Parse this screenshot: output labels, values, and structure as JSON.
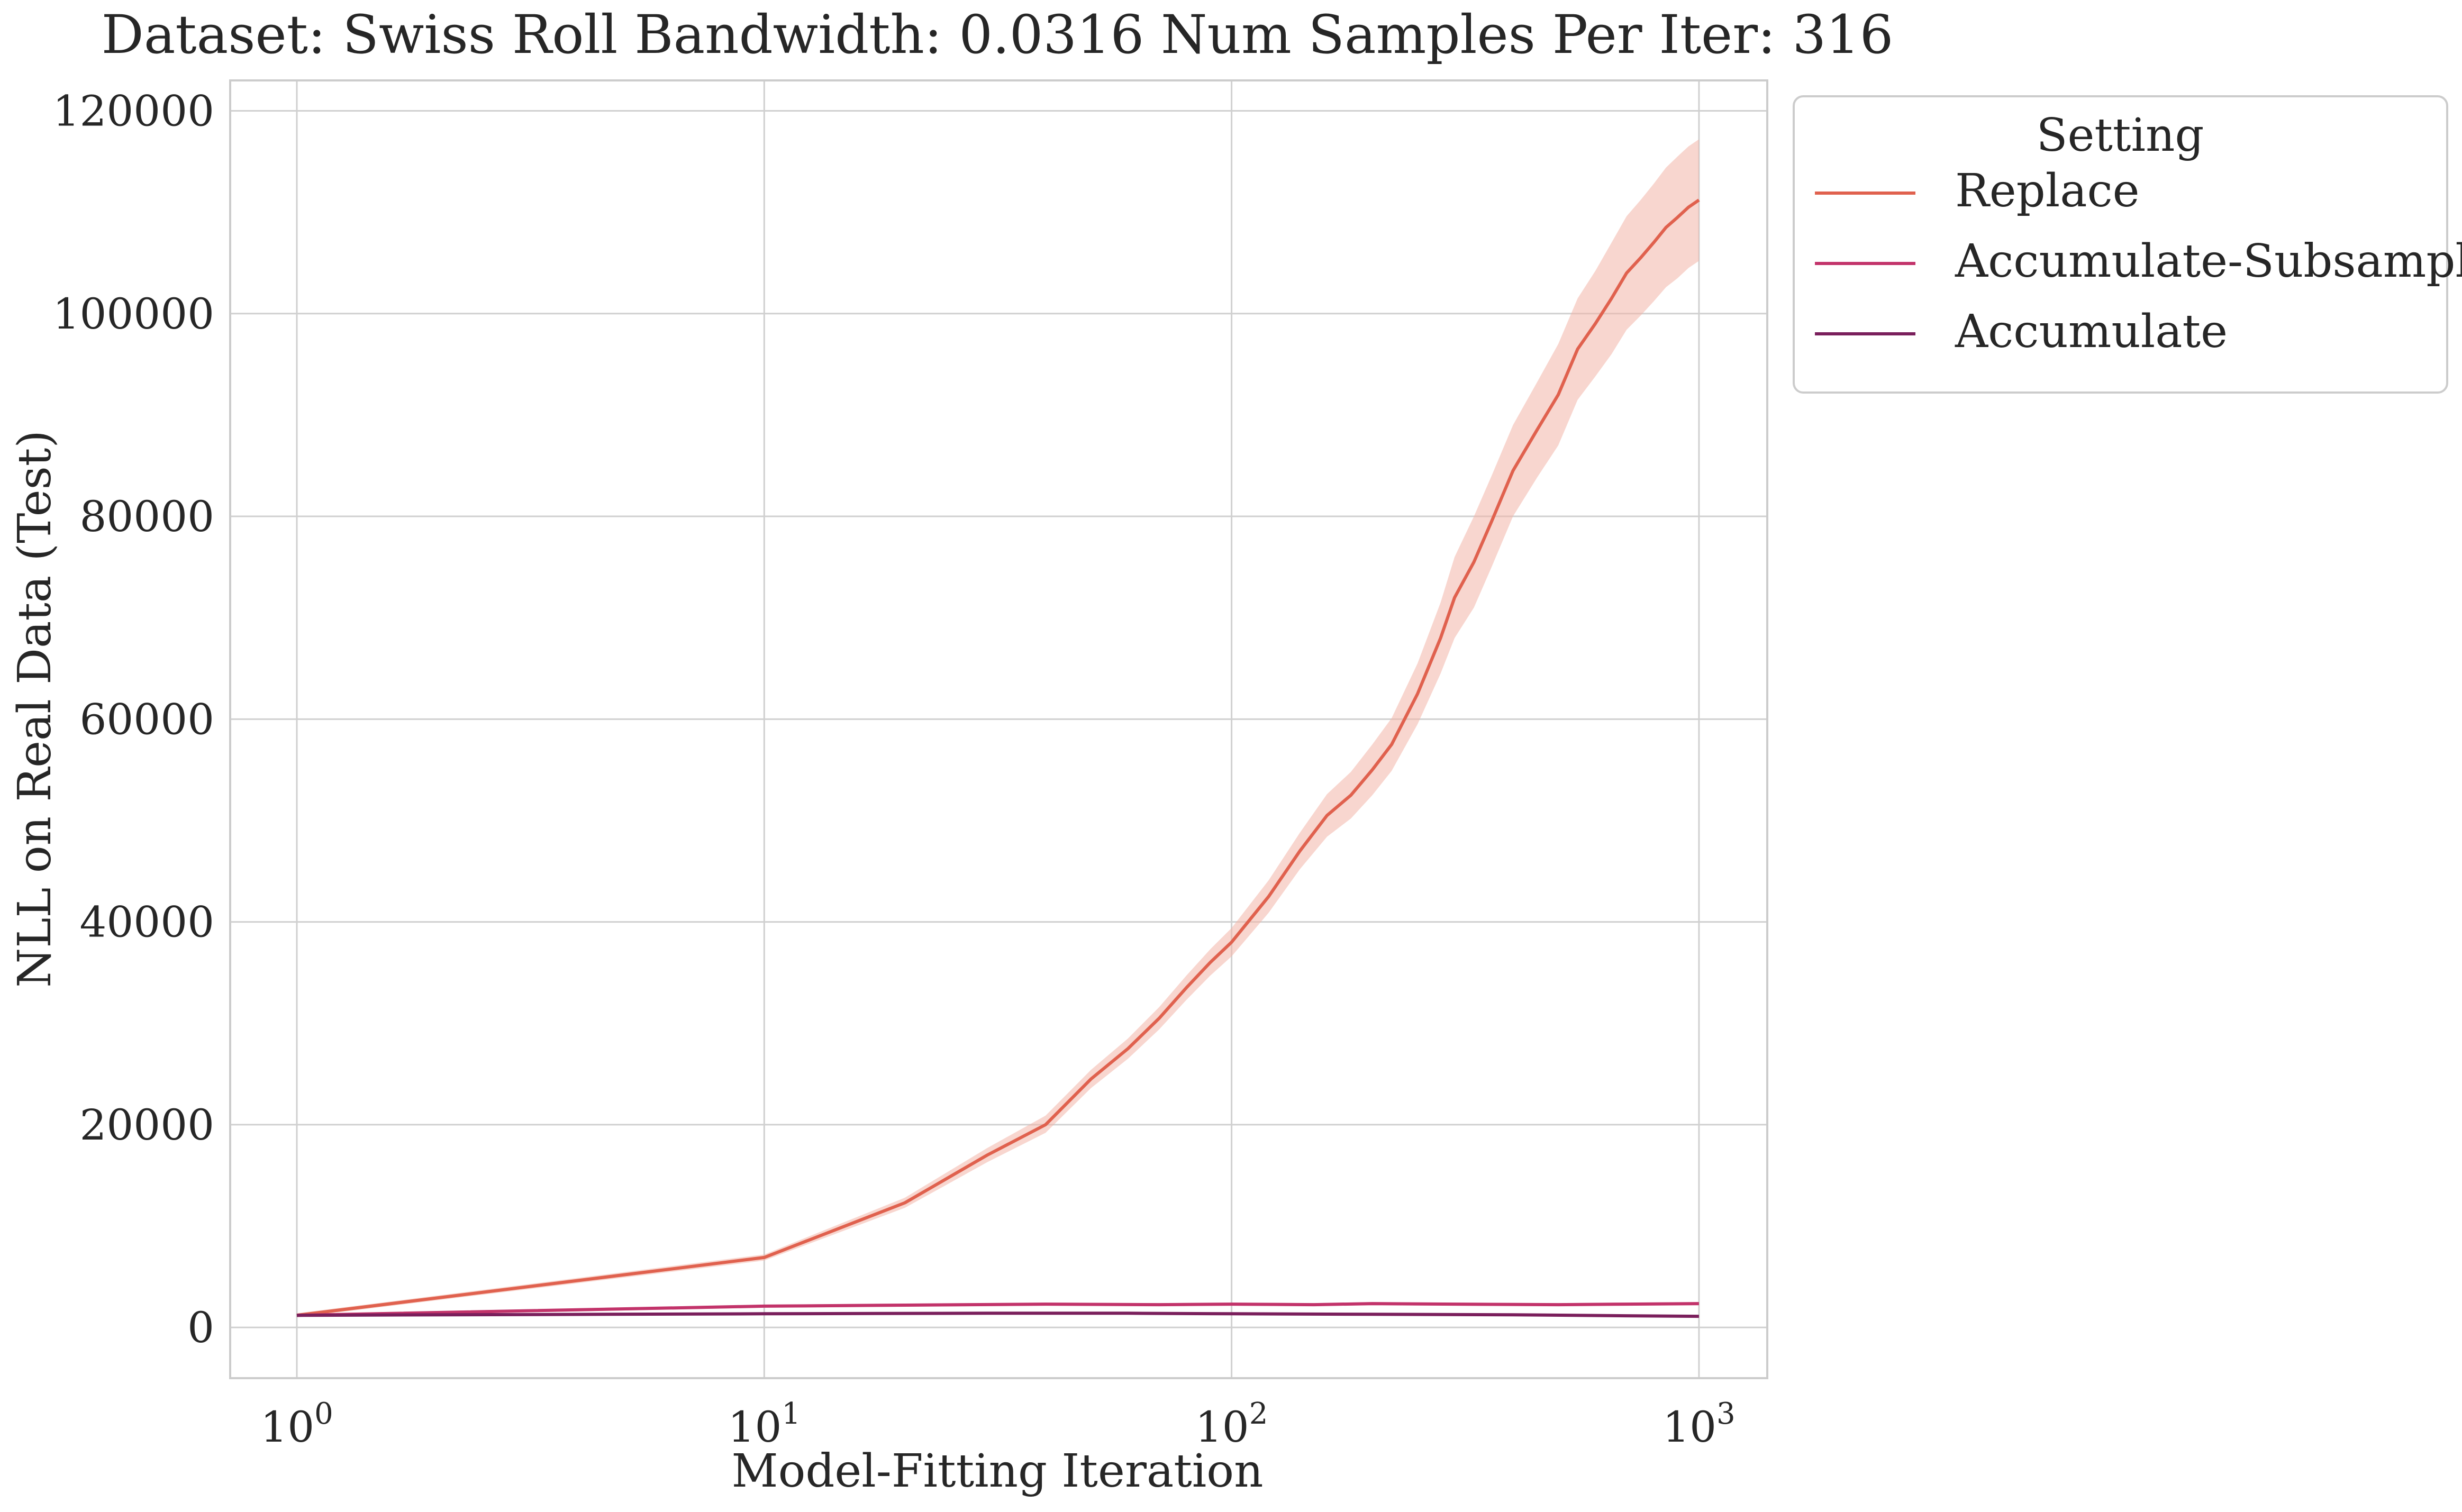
{
  "chart_data": {
    "type": "line",
    "title": "Dataset: Swiss Roll Bandwidth: 0.0316 Num Samples Per Iter: 316",
    "xlabel": "Model-Fitting Iteration",
    "ylabel": "NLL on Real Data (Test)",
    "x_scale": "log",
    "xlim": [
      0.72,
      1400
    ],
    "ylim": [
      -5000,
      123000
    ],
    "x_ticks": [
      {
        "value": 1,
        "base": "10",
        "exp": "0"
      },
      {
        "value": 10,
        "base": "10",
        "exp": "1"
      },
      {
        "value": 100,
        "base": "10",
        "exp": "2"
      },
      {
        "value": 1000,
        "base": "10",
        "exp": "3"
      }
    ],
    "y_ticks": [
      {
        "value": 0,
        "label": "0"
      },
      {
        "value": 20000,
        "label": "20000"
      },
      {
        "value": 40000,
        "label": "40000"
      },
      {
        "value": 60000,
        "label": "60000"
      },
      {
        "value": 80000,
        "label": "80000"
      },
      {
        "value": 100000,
        "label": "100000"
      },
      {
        "value": 120000,
        "label": "120000"
      }
    ],
    "grid": true,
    "legend": {
      "title": "Setting",
      "position": "outside-top-right"
    },
    "series": [
      {
        "name": "Replace",
        "color": "#e0614e",
        "band_color": "#f3b5a8",
        "points": [
          [
            1,
            1200
          ],
          [
            10,
            6900
          ],
          [
            20,
            12300
          ],
          [
            30,
            17000
          ],
          [
            40,
            20000
          ],
          [
            50,
            24500
          ],
          [
            60,
            27500
          ],
          [
            70,
            30500
          ],
          [
            80,
            33500
          ],
          [
            90,
            36000
          ],
          [
            100,
            38000
          ],
          [
            120,
            42500
          ],
          [
            140,
            47000
          ],
          [
            160,
            50500
          ],
          [
            180,
            52500
          ],
          [
            200,
            55000
          ],
          [
            220,
            57500
          ],
          [
            250,
            62500
          ],
          [
            280,
            68000
          ],
          [
            300,
            72000
          ],
          [
            330,
            75500
          ],
          [
            360,
            79500
          ],
          [
            400,
            84500
          ],
          [
            450,
            88500
          ],
          [
            500,
            92000
          ],
          [
            550,
            96500
          ],
          [
            600,
            99000
          ],
          [
            650,
            101500
          ],
          [
            700,
            104000
          ],
          [
            750,
            105500
          ],
          [
            800,
            107000
          ],
          [
            850,
            108500
          ],
          [
            900,
            109500
          ],
          [
            950,
            110500
          ],
          [
            1000,
            111200
          ]
        ],
        "band": [
          [
            1,
            1000,
            1400
          ],
          [
            10,
            6600,
            7200
          ],
          [
            20,
            11800,
            12800
          ],
          [
            30,
            16300,
            17700
          ],
          [
            40,
            19200,
            20900
          ],
          [
            50,
            23600,
            25400
          ],
          [
            60,
            26500,
            28500
          ],
          [
            70,
            29400,
            31600
          ],
          [
            80,
            32300,
            34700
          ],
          [
            90,
            34700,
            37300
          ],
          [
            100,
            36600,
            39400
          ],
          [
            120,
            40900,
            44100
          ],
          [
            140,
            45200,
            48800
          ],
          [
            160,
            48400,
            52600
          ],
          [
            180,
            50200,
            54800
          ],
          [
            200,
            52500,
            57500
          ],
          [
            220,
            54900,
            60100
          ],
          [
            250,
            59500,
            65500
          ],
          [
            280,
            64500,
            71500
          ],
          [
            300,
            68000,
            76000
          ],
          [
            330,
            71000,
            80000
          ],
          [
            360,
            75000,
            84000
          ],
          [
            400,
            80000,
            89000
          ],
          [
            450,
            83800,
            93200
          ],
          [
            500,
            87000,
            97000
          ],
          [
            550,
            91500,
            101500
          ],
          [
            600,
            93800,
            104200
          ],
          [
            650,
            96000,
            107000
          ],
          [
            700,
            98400,
            109600
          ],
          [
            750,
            99800,
            111200
          ],
          [
            800,
            101200,
            112800
          ],
          [
            850,
            102600,
            114400
          ],
          [
            900,
            103500,
            115500
          ],
          [
            950,
            104500,
            116500
          ],
          [
            1000,
            105200,
            117200
          ]
        ]
      },
      {
        "name": "Accumulate-Subsample",
        "color": "#c2336a",
        "band_color": "#e8a3bd",
        "points": [
          [
            1,
            1200
          ],
          [
            10,
            2100
          ],
          [
            20,
            2200
          ],
          [
            40,
            2300
          ],
          [
            70,
            2250
          ],
          [
            100,
            2300
          ],
          [
            150,
            2250
          ],
          [
            200,
            2350
          ],
          [
            300,
            2300
          ],
          [
            500,
            2250
          ],
          [
            700,
            2300
          ],
          [
            1000,
            2350
          ]
        ],
        "band": [
          [
            1,
            1050,
            1350
          ],
          [
            10,
            1950,
            2250
          ],
          [
            20,
            2050,
            2350
          ],
          [
            40,
            2150,
            2450
          ],
          [
            70,
            2100,
            2400
          ],
          [
            100,
            2150,
            2450
          ],
          [
            150,
            2100,
            2400
          ],
          [
            200,
            2200,
            2500
          ],
          [
            300,
            2150,
            2450
          ],
          [
            500,
            2100,
            2400
          ],
          [
            700,
            2150,
            2450
          ],
          [
            1000,
            2200,
            2500
          ]
        ]
      },
      {
        "name": "Accumulate",
        "color": "#7a1f5c",
        "band_color": "#c9a0bc",
        "points": [
          [
            1,
            1200
          ],
          [
            10,
            1350
          ],
          [
            30,
            1400
          ],
          [
            60,
            1400
          ],
          [
            100,
            1350
          ],
          [
            200,
            1300
          ],
          [
            400,
            1250
          ],
          [
            700,
            1150
          ],
          [
            1000,
            1100
          ]
        ],
        "band": [
          [
            1,
            1100,
            1300
          ],
          [
            10,
            1250,
            1450
          ],
          [
            30,
            1300,
            1500
          ],
          [
            60,
            1300,
            1500
          ],
          [
            100,
            1250,
            1450
          ],
          [
            200,
            1200,
            1400
          ],
          [
            400,
            1150,
            1350
          ],
          [
            700,
            1050,
            1250
          ],
          [
            1000,
            1000,
            1200
          ]
        ]
      }
    ]
  }
}
